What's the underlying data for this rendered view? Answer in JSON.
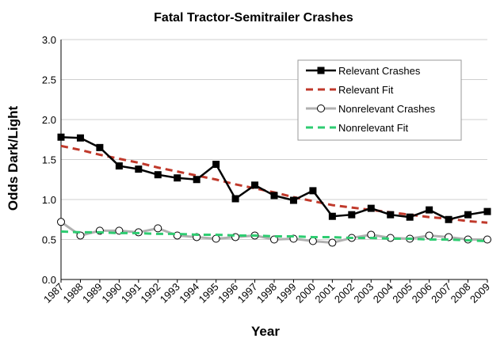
{
  "chart_data": {
    "type": "line",
    "title": "Fatal Tractor-Semitrailer Crashes",
    "xlabel": "Year",
    "ylabel": "Odds Dark/Light",
    "ylim": [
      0,
      3.0
    ],
    "yticks": [
      "0.0",
      "0.5",
      "1.0",
      "1.5",
      "2.0",
      "2.5",
      "3.0"
    ],
    "x": [
      "1987",
      "1988",
      "1989",
      "1990",
      "1991",
      "1992",
      "1993",
      "1994",
      "1995",
      "1996",
      "1997",
      "1998",
      "1999",
      "2000",
      "2001",
      "2002",
      "2003",
      "2004",
      "2005",
      "2006",
      "2007",
      "2008",
      "2009"
    ],
    "grid": true,
    "legend_position": "top-right",
    "series": [
      {
        "name": "Relevant Crashes",
        "style": "line-square-marker",
        "color": "#000000",
        "values": [
          1.78,
          1.77,
          1.65,
          1.42,
          1.38,
          1.31,
          1.27,
          1.25,
          1.44,
          1.01,
          1.18,
          1.05,
          0.99,
          1.11,
          0.79,
          0.81,
          0.89,
          0.81,
          0.78,
          0.87,
          0.75,
          0.81,
          0.85
        ]
      },
      {
        "name": "Relevant Fit",
        "style": "dashed",
        "color": "#c0392b",
        "values": [
          1.67,
          1.62,
          1.56,
          1.51,
          1.46,
          1.4,
          1.35,
          1.3,
          1.25,
          1.19,
          1.14,
          1.09,
          1.03,
          0.98,
          0.93,
          0.9,
          0.87,
          0.84,
          0.81,
          0.78,
          0.76,
          0.73,
          0.71
        ]
      },
      {
        "name": "Nonrelevant Crashes",
        "style": "line-circle-marker",
        "color": "#b0b0b0",
        "values": [
          0.72,
          0.55,
          0.61,
          0.61,
          0.59,
          0.64,
          0.55,
          0.53,
          0.51,
          0.53,
          0.55,
          0.5,
          0.51,
          0.48,
          0.46,
          0.52,
          0.56,
          0.52,
          0.51,
          0.55,
          0.53,
          0.5,
          0.5
        ]
      },
      {
        "name": "Nonrelevant Fit",
        "style": "dashed",
        "color": "#2ecc71",
        "values": [
          0.6,
          0.59,
          0.59,
          0.58,
          0.58,
          0.57,
          0.57,
          0.56,
          0.56,
          0.55,
          0.55,
          0.54,
          0.54,
          0.53,
          0.53,
          0.52,
          0.52,
          0.51,
          0.51,
          0.5,
          0.5,
          0.49,
          0.48
        ]
      }
    ]
  }
}
